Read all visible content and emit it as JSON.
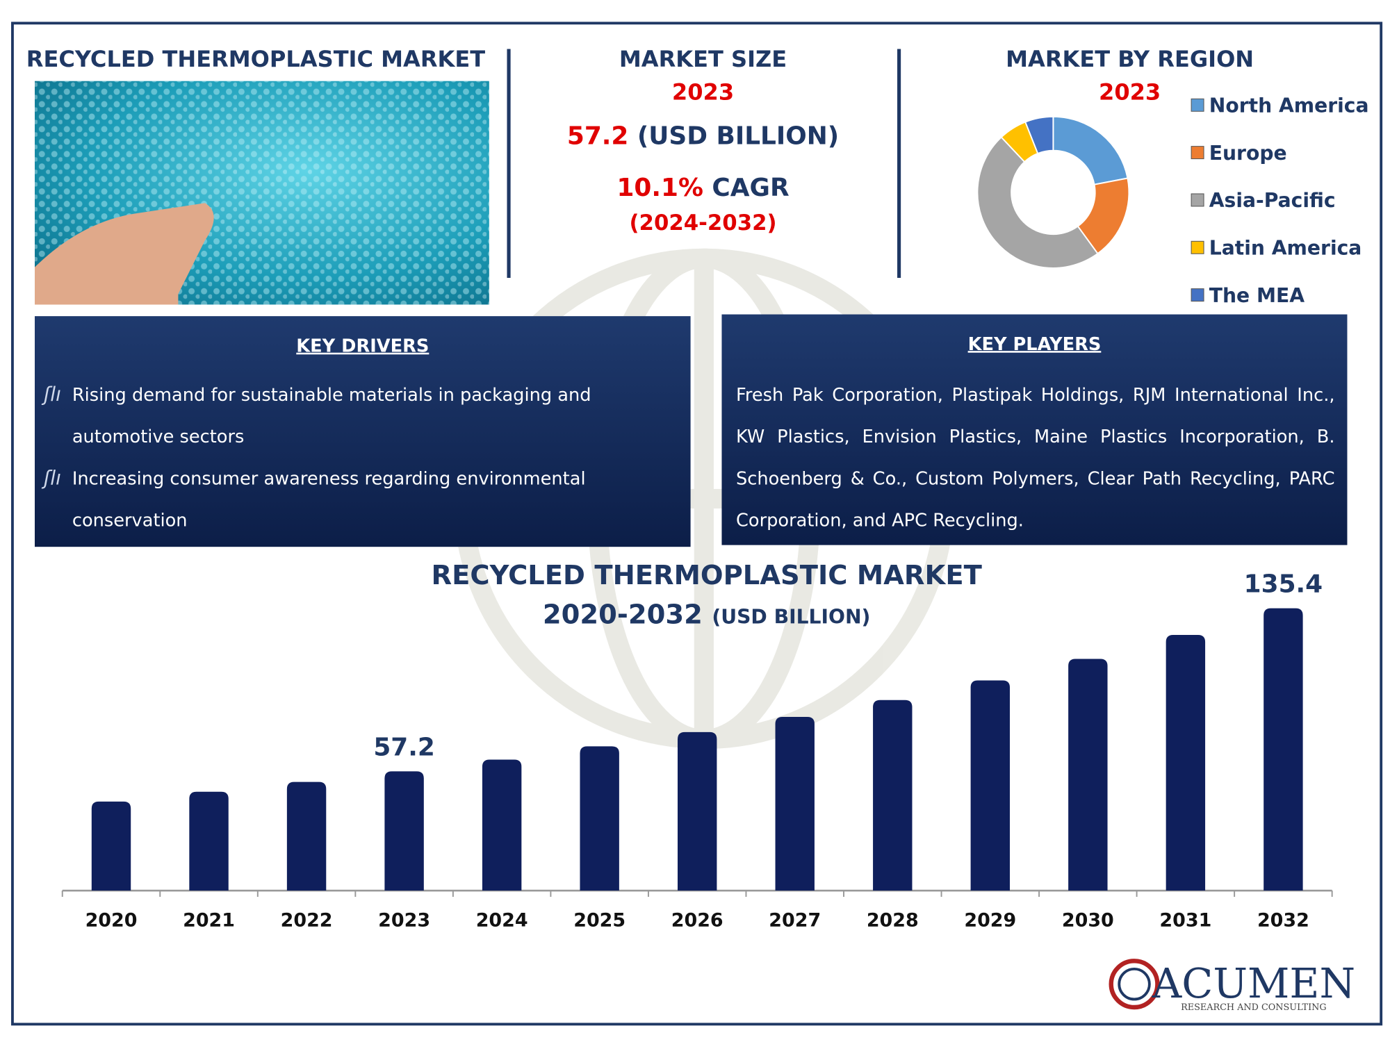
{
  "header": {
    "title": "RECYCLED THERMOPLASTIC MARKET"
  },
  "market_size": {
    "title": "MARKET SIZE",
    "year": "2023",
    "value": "57.2",
    "unit": "(USD BILLION)",
    "cagr": "10.1%",
    "cagr_label": "CAGR",
    "period": "(2024-2032)"
  },
  "key_drivers": {
    "title": "KEY DRIVERS",
    "items": [
      "Rising demand for sustainable materials in packaging and automotive sectors",
      "Increasing consumer awareness regarding environmental conservation"
    ]
  },
  "key_players": {
    "title": "KEY PLAYERS",
    "text": "Fresh Pak Corporation, Plastipak Holdings, RJM International Inc., KW Plastics, Envision Plastics, Maine Plastics Incorporation, B. Schoenberg & Co., Custom Polymers, Clear Path Recycling, PARC Corporation, and APC Recycling."
  },
  "logo": {
    "name": "ACUMEN",
    "tagline": "RESEARCH AND CONSULTING"
  },
  "chart_data": [
    {
      "type": "donut",
      "title": "MARKET BY REGION",
      "subtitle": "2023",
      "categories": [
        "North America",
        "Europe",
        "Asia-Pacific",
        "Latin America",
        "The MEA"
      ],
      "values": [
        22,
        18,
        48,
        6,
        6
      ],
      "colors": [
        "#5b9bd5",
        "#ed7d31",
        "#a5a5a5",
        "#ffc000",
        "#4472c4"
      ]
    },
    {
      "type": "bar",
      "title": "RECYCLED THERMOPLASTIC MARKET",
      "subtitle": "2020-2032",
      "unit": "(USD BILLION)",
      "categories": [
        "2020",
        "2021",
        "2022",
        "2023",
        "2024",
        "2025",
        "2026",
        "2027",
        "2028",
        "2029",
        "2030",
        "2031",
        "2032"
      ],
      "values": [
        42.7,
        47.4,
        52.1,
        57.2,
        62.8,
        69.2,
        76.0,
        83.3,
        91.4,
        100.8,
        111.1,
        122.6,
        135.4
      ],
      "value_labels": [
        null,
        null,
        null,
        "57.2",
        null,
        null,
        null,
        null,
        null,
        null,
        null,
        null,
        "135.4"
      ],
      "color": "#0f1f5c",
      "ylim": [
        0,
        145
      ]
    }
  ]
}
